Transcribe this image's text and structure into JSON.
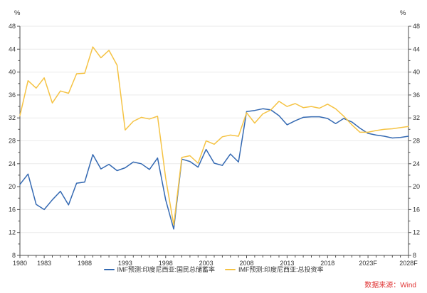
{
  "chart": {
    "y_unit_left": "%",
    "y_unit_right": "%",
    "source_text": "数据来源：Wind",
    "source_color": "#e03434"
  },
  "chart_data": {
    "type": "line",
    "title": "",
    "xlabel": "",
    "ylabel": "%",
    "xlim": [
      1980,
      2028
    ],
    "ylim": [
      8,
      48
    ],
    "y_ticks": [
      8,
      12,
      16,
      20,
      24,
      28,
      32,
      36,
      40,
      44,
      48
    ],
    "x_tick_labels": [
      "1980",
      "1983",
      "1988",
      "1993",
      "1998",
      "2003",
      "2008",
      "2013",
      "2018",
      "2023F",
      "2028F"
    ],
    "x_tick_years": [
      1980,
      1983,
      1988,
      1993,
      1998,
      2003,
      2008,
      2013,
      2018,
      2023,
      2028
    ],
    "grid": "horizontal",
    "legend_position": "bottom",
    "x": [
      1980,
      1981,
      1982,
      1983,
      1984,
      1985,
      1986,
      1987,
      1988,
      1989,
      1990,
      1991,
      1992,
      1993,
      1994,
      1995,
      1996,
      1997,
      1998,
      1999,
      2000,
      2001,
      2002,
      2003,
      2004,
      2005,
      2006,
      2007,
      2008,
      2009,
      2010,
      2011,
      2012,
      2013,
      2014,
      2015,
      2016,
      2017,
      2018,
      2019,
      2020,
      2021,
      2022,
      2023,
      2024,
      2025,
      2026,
      2027,
      2028
    ],
    "series": [
      {
        "name": "IMF预测:印度尼西亚:国民总储蓄率",
        "color": "#3469b2",
        "values": [
          20.4,
          22.2,
          16.9,
          16.0,
          17.7,
          19.2,
          16.8,
          20.6,
          20.8,
          25.6,
          23.1,
          23.9,
          22.8,
          23.3,
          24.3,
          24.0,
          23.0,
          25.0,
          17.7,
          12.6,
          24.8,
          24.4,
          23.4,
          26.5,
          24.1,
          23.7,
          25.7,
          24.3,
          33.1,
          33.3,
          33.6,
          33.4,
          32.4,
          30.8,
          31.5,
          32.1,
          32.2,
          32.2,
          31.9,
          31.0,
          31.9,
          31.3,
          30.2,
          29.3,
          29.0,
          28.8,
          28.5,
          28.6,
          28.8
        ]
      },
      {
        "name": "IMF预测:印度尼西亚:总投资率",
        "color": "#f5c344",
        "values": [
          32.4,
          38.5,
          37.2,
          39.0,
          34.6,
          36.7,
          36.3,
          39.7,
          39.8,
          44.4,
          42.5,
          43.8,
          41.2,
          29.9,
          31.4,
          32.1,
          31.8,
          32.3,
          21.5,
          13.3,
          25.1,
          25.4,
          24.1,
          28.0,
          27.4,
          28.7,
          29.0,
          28.8,
          32.9,
          31.1,
          32.7,
          33.4,
          34.9,
          34.0,
          34.5,
          33.8,
          34.0,
          33.7,
          34.4,
          33.6,
          32.3,
          30.8,
          29.5,
          29.5,
          29.8,
          30.0,
          30.1,
          30.3,
          30.5
        ]
      }
    ]
  }
}
